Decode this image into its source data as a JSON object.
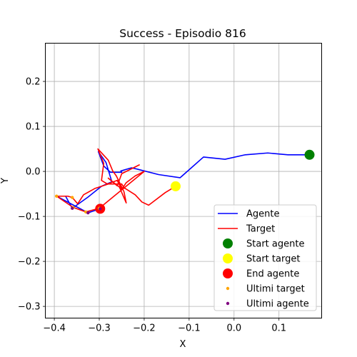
{
  "chart_data": {
    "type": "line",
    "title": "Success - Episodio 816",
    "xlabel": "X",
    "ylabel": "Y",
    "xlim": [
      -0.42,
      0.195
    ],
    "ylim": [
      -0.326,
      0.285
    ],
    "xticks": [
      -0.4,
      -0.3,
      -0.2,
      -0.1,
      0.0,
      0.1
    ],
    "xtick_labels": [
      "−0.4",
      "−0.3",
      "−0.2",
      "−0.1",
      "0.0",
      "0.1"
    ],
    "yticks": [
      -0.3,
      -0.2,
      -0.1,
      0.0,
      0.1,
      0.2
    ],
    "ytick_labels": [
      "−0.3",
      "−0.2",
      "−0.1",
      "0.0",
      "0.1",
      "0.2"
    ],
    "grid": true,
    "legend_position": "lower-right",
    "series": [
      {
        "name": "Agente",
        "kind": "line",
        "color": "#0000ff",
        "points": [
          [
            0.168,
            0.037
          ],
          [
            0.12,
            0.037
          ],
          [
            0.075,
            0.041
          ],
          [
            0.025,
            0.037
          ],
          [
            -0.02,
            0.027
          ],
          [
            -0.068,
            0.032
          ],
          [
            -0.12,
            -0.014
          ],
          [
            -0.168,
            -0.007
          ],
          [
            -0.215,
            0.005
          ],
          [
            -0.228,
            0.008
          ],
          [
            -0.252,
            0.001
          ],
          [
            -0.25,
            -0.002
          ],
          [
            -0.275,
            -0.002
          ],
          [
            -0.29,
            0.012
          ],
          [
            -0.302,
            0.044
          ],
          [
            -0.285,
            0.02
          ],
          [
            -0.272,
            -0.023
          ],
          [
            -0.295,
            -0.033
          ],
          [
            -0.325,
            -0.057
          ],
          [
            -0.36,
            -0.082
          ],
          [
            -0.375,
            -0.055
          ],
          [
            -0.395,
            -0.055
          ],
          [
            -0.325,
            -0.092
          ],
          [
            -0.298,
            -0.083
          ]
        ]
      },
      {
        "name": "Target",
        "kind": "line",
        "color": "#ff0000",
        "points": [
          [
            -0.13,
            -0.033
          ],
          [
            -0.153,
            -0.047
          ],
          [
            -0.19,
            -0.075
          ],
          [
            -0.205,
            -0.068
          ],
          [
            -0.22,
            -0.052
          ],
          [
            -0.245,
            -0.036
          ],
          [
            -0.25,
            -0.028
          ],
          [
            -0.28,
            -0.028
          ],
          [
            -0.31,
            -0.038
          ],
          [
            -0.335,
            -0.052
          ],
          [
            -0.348,
            -0.072
          ],
          [
            -0.36,
            -0.058
          ],
          [
            -0.37,
            -0.055
          ],
          [
            -0.395,
            -0.055
          ],
          [
            -0.358,
            -0.08
          ],
          [
            -0.33,
            -0.09
          ],
          [
            -0.3,
            -0.082
          ],
          [
            -0.2,
            -0.0
          ],
          [
            -0.22,
            -0.01
          ],
          [
            -0.24,
            -0.025
          ],
          [
            -0.25,
            -0.04
          ],
          [
            -0.26,
            -0.02
          ],
          [
            -0.282,
            -0.028
          ],
          [
            -0.295,
            -0.02
          ],
          [
            -0.29,
            0.018
          ],
          [
            -0.303,
            0.05
          ],
          [
            -0.28,
            0.025
          ],
          [
            -0.27,
            0.001
          ],
          [
            -0.262,
            -0.01
          ],
          [
            -0.245,
            -0.045
          ],
          [
            -0.24,
            -0.07
          ],
          [
            -0.255,
            -0.035
          ],
          [
            -0.28,
            -0.015
          ],
          [
            -0.26,
            -0.032
          ],
          [
            -0.25,
            -0.005
          ],
          [
            -0.21,
            0.015
          ]
        ]
      },
      {
        "name": "Start agente",
        "kind": "marker",
        "color": "#008000",
        "size": 7,
        "points": [
          [
            0.168,
            0.037
          ]
        ]
      },
      {
        "name": "Start target",
        "kind": "marker",
        "color": "#ffff00",
        "size": 7,
        "points": [
          [
            -0.13,
            -0.033
          ]
        ]
      },
      {
        "name": "End agente",
        "kind": "marker",
        "color": "#ff0000",
        "size": 7,
        "points": [
          [
            -0.298,
            -0.083
          ]
        ]
      },
      {
        "name": "Ultimi target",
        "kind": "dots",
        "color": "#ffa500",
        "size": 2.2,
        "points": [
          [
            -0.395,
            -0.055
          ],
          [
            -0.36,
            -0.058
          ],
          [
            -0.358,
            -0.08
          ],
          [
            -0.33,
            -0.09
          ],
          [
            -0.3,
            -0.082
          ]
        ]
      },
      {
        "name": "Ultimi agente",
        "kind": "dots",
        "color": "#800080",
        "size": 2.2,
        "points": [
          [
            -0.36,
            -0.082
          ],
          [
            -0.325,
            -0.092
          ],
          [
            -0.298,
            -0.083
          ]
        ]
      }
    ]
  }
}
